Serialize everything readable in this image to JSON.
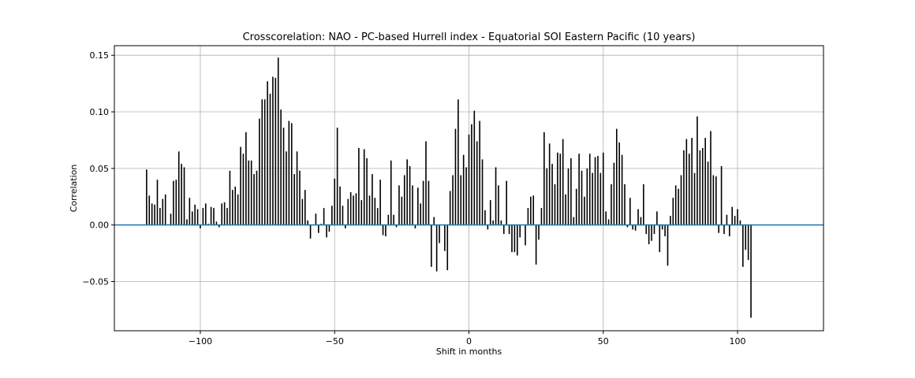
{
  "chart_data": {
    "type": "bar",
    "title": "Crosscorelation: NAO - PC-based Hurrell index - Equatorial SOI Eastern Pacific (10 years)",
    "xlabel": "Shift in months",
    "ylabel": "Correlation",
    "xlim": [
      -132,
      132
    ],
    "ylim": [
      -0.0935,
      0.1585
    ],
    "x_ticks": [
      -100,
      -50,
      0,
      50,
      100
    ],
    "x_tick_labels": [
      "−100",
      "−50",
      "0",
      "50",
      "100"
    ],
    "y_ticks": [
      -0.05,
      0.0,
      0.05,
      0.1,
      0.15
    ],
    "y_tick_labels": [
      "−0.05",
      "0.00",
      "0.05",
      "0.10",
      "0.15"
    ],
    "grid": true,
    "bar_color": "#000000",
    "zero_line_color": "#1f77b4",
    "grid_color": "#b0b0b0",
    "series": [
      {
        "x_start": -120,
        "x_step": 1,
        "values": [
          0.049,
          0.026,
          0.019,
          0.018,
          0.04,
          0.015,
          0.023,
          0.027,
          0.0,
          0.01,
          0.039,
          0.04,
          0.065,
          0.054,
          0.051,
          0.005,
          0.024,
          0.012,
          0.018,
          0.014,
          -0.003,
          0.015,
          0.019,
          0.001,
          0.016,
          0.015,
          0.003,
          -0.002,
          0.019,
          0.02,
          0.015,
          0.048,
          0.031,
          0.034,
          0.027,
          0.069,
          0.063,
          0.082,
          0.057,
          0.057,
          0.045,
          0.048,
          0.094,
          0.111,
          0.111,
          0.127,
          0.116,
          0.131,
          0.13,
          0.148,
          0.102,
          0.086,
          0.065,
          0.092,
          0.09,
          0.045,
          0.065,
          0.048,
          0.023,
          0.031,
          0.004,
          -0.012,
          0.0,
          0.01,
          -0.007,
          0.001,
          0.015,
          -0.011,
          -0.006,
          0.017,
          0.041,
          0.086,
          0.034,
          0.017,
          -0.003,
          0.023,
          0.029,
          0.026,
          0.028,
          0.068,
          0.022,
          0.067,
          0.059,
          0.026,
          0.045,
          0.024,
          0.015,
          0.04,
          -0.009,
          -0.01,
          0.009,
          0.057,
          0.009,
          -0.002,
          0.035,
          0.025,
          0.044,
          0.058,
          0.052,
          0.035,
          -0.003,
          0.033,
          0.019,
          0.039,
          0.074,
          0.039,
          -0.037,
          0.007,
          -0.041,
          -0.016,
          0.0,
          -0.023,
          -0.04,
          0.03,
          0.044,
          0.085,
          0.111,
          0.044,
          0.062,
          0.051,
          0.08,
          0.089,
          0.101,
          0.074,
          0.092,
          0.058,
          0.013,
          -0.004,
          0.022,
          0.004,
          0.051,
          0.035,
          0.004,
          -0.008,
          0.039,
          -0.008,
          -0.024,
          -0.024,
          -0.027,
          -0.011,
          0.0,
          -0.018,
          0.015,
          0.025,
          0.026,
          -0.035,
          -0.013,
          0.015,
          0.082,
          0.05,
          0.072,
          0.054,
          0.036,
          0.064,
          0.063,
          0.076,
          0.027,
          0.05,
          0.059,
          0.007,
          0.032,
          0.063,
          0.048,
          0.025,
          0.05,
          0.063,
          0.046,
          0.06,
          0.061,
          0.046,
          0.064,
          0.012,
          0.005,
          0.036,
          0.055,
          0.085,
          0.073,
          0.062,
          0.036,
          -0.002,
          0.024,
          -0.004,
          -0.005,
          0.014,
          0.007,
          0.036,
          -0.008,
          -0.017,
          -0.014,
          -0.008,
          0.012,
          -0.024,
          -0.004,
          -0.01,
          -0.036,
          0.008,
          0.024,
          0.035,
          0.032,
          0.044,
          0.066,
          0.076,
          0.063,
          0.077,
          0.046,
          0.096,
          0.066,
          0.068,
          0.077,
          0.056,
          0.083,
          0.044,
          0.043,
          -0.007,
          0.052,
          -0.008,
          0.009,
          -0.01,
          0.016,
          0.008,
          0.014,
          0.004,
          -0.037,
          -0.022,
          -0.031,
          -0.082
        ]
      }
    ]
  }
}
